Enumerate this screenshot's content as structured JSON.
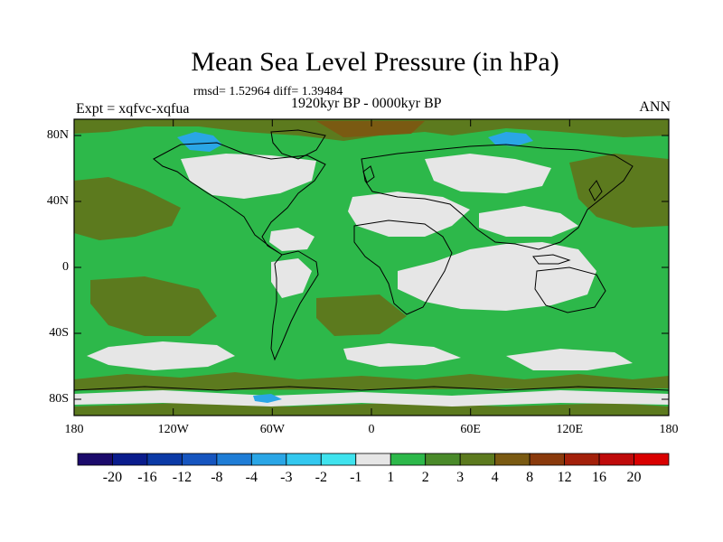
{
  "title": "Mean Sea Level Pressure (in hPa)",
  "stats": "rmsd= 1.52964 diff= 1.39484",
  "experiment": "Expt = xqfvc-xqfua",
  "period": "1920kyr BP - 0000kyr BP",
  "season": "ANN",
  "lat_labels": [
    "80N",
    "40N",
    "0",
    "40S",
    "80S"
  ],
  "lon_labels": [
    "180",
    "120W",
    "60W",
    "0",
    "60E",
    "120E",
    "180"
  ],
  "colorbar": {
    "labels": [
      "-20",
      "-16",
      "-12",
      "-8",
      "-4",
      "-3",
      "-2",
      "-1",
      "1",
      "2",
      "3",
      "4",
      "8",
      "12",
      "16",
      "20"
    ],
    "colors": [
      "#1b0a6b",
      "#0a1c8c",
      "#0b3aa6",
      "#1655bf",
      "#1f7dd6",
      "#2aa6e6",
      "#33c8ef",
      "#3fe3ee",
      "#e6e6e6",
      "#2db84a",
      "#4a8a2a",
      "#5c7a1e",
      "#7a5a12",
      "#8a3a0c",
      "#a3200a",
      "#bf0a0a",
      "#d90000"
    ]
  },
  "field_colors": {
    "ocean_base": "#2db84a",
    "near_zero": "#e6e6e6",
    "positive_3_4": "#5c7a1e",
    "positive_4_8": "#7a5a12",
    "negative": "#2aa6e6"
  }
}
